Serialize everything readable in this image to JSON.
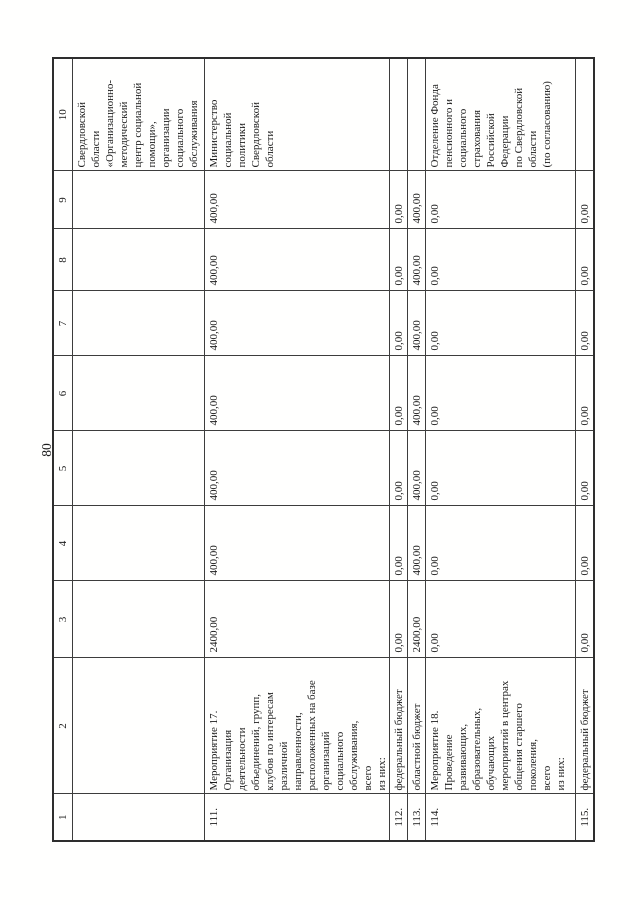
{
  "page": {
    "number": "80"
  },
  "table": {
    "column_headers": [
      "1",
      "2",
      "3",
      "4",
      "5",
      "6",
      "7",
      "8",
      "9",
      "10"
    ],
    "rows": [
      {
        "num": "",
        "name_lines": [],
        "values": [
          "",
          "",
          "",
          "",
          "",
          "",
          ""
        ],
        "executor_lines": [
          "Свердловской",
          "области",
          "«Организационно-",
          "методический",
          "центр социальной",
          "помощи»,",
          "организации",
          "социального",
          "обслуживания"
        ]
      },
      {
        "num": "111.",
        "name_lines": [
          "Мероприятие 17.",
          "Организация",
          "деятельности",
          "объединений, групп,",
          "клубов по интересам",
          "различной",
          "направленности,",
          "расположенных на базе",
          "организаций",
          "социального",
          "обслуживания,",
          "всего",
          "из них:"
        ],
        "values": [
          "2400,00",
          "400,00",
          "400,00",
          "400,00",
          "400,00",
          "400,00",
          "400,00"
        ],
        "executor_lines": [
          "Министерство",
          "социальной",
          "политики",
          "Свердловской",
          "области"
        ]
      },
      {
        "num": "112.",
        "name_lines": [
          "федеральный бюджет"
        ],
        "values": [
          "0,00",
          "0,00",
          "0,00",
          "0,00",
          "0,00",
          "0,00",
          "0,00"
        ],
        "executor_lines": []
      },
      {
        "num": "113.",
        "name_lines": [
          "областной бюджет"
        ],
        "values": [
          "2400,00",
          "400,00",
          "400,00",
          "400,00",
          "400,00",
          "400,00",
          "400,00"
        ],
        "executor_lines": []
      },
      {
        "num": "114.",
        "name_lines": [
          "Мероприятие 18.",
          "Проведение",
          "развивающих,",
          "образовательных,",
          "обучающих",
          "мероприятий в центрах",
          "общения старшего",
          "поколения,",
          "всего",
          "из них:"
        ],
        "values": [
          "0,00",
          "0,00",
          "0,00",
          "0,00",
          "0,00",
          "0,00",
          "0,00"
        ],
        "executor_lines": [
          "Отделение Фонда",
          "пенсионного и",
          "социального",
          "страхования",
          "Российской",
          "Федерации",
          "по Свердловской",
          "области",
          "(по согласованию)"
        ]
      },
      {
        "num": "115.",
        "name_lines": [
          "федеральный бюджет"
        ],
        "values": [
          "0,00",
          "0,00",
          "0,00",
          "0,00",
          "0,00",
          "0,00",
          "0,00"
        ],
        "executor_lines": []
      }
    ]
  }
}
